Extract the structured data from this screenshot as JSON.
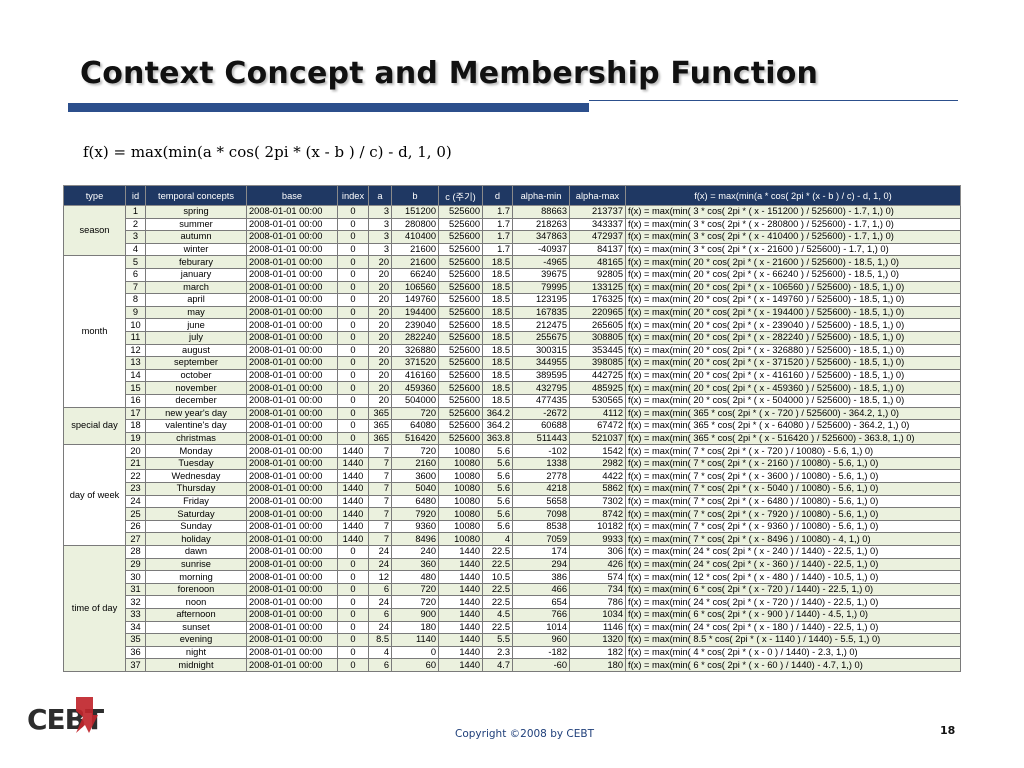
{
  "title": "Context Concept and Membership Function",
  "formula": "f(x) = max(min(a * cos( 2pi * (x - b ) / c) - d, 1, 0)",
  "table": {
    "headers": [
      "type",
      "id",
      "temporal concepts",
      "base",
      "index",
      "a",
      "b",
      "c (주기)",
      "d",
      "alpha-min",
      "alpha-max",
      "f(x)  =  max(min(a * cos( 2pi * (x - b ) / c) - d, 1, 0)"
    ],
    "groups": [
      {
        "label": "season",
        "rows": [
          [
            "1",
            "spring",
            "2008-01-01 00:00",
            "0",
            "3",
            "151200",
            "525600",
            "1.7",
            "88663",
            "213737",
            "f(x) = max(min( 3 * cos( 2pi * ( x - 151200 ) / 525600) - 1.7, 1,) 0)"
          ],
          [
            "2",
            "summer",
            "2008-01-01 00:00",
            "0",
            "3",
            "280800",
            "525600",
            "1.7",
            "218263",
            "343337",
            "f(x) = max(min( 3 * cos( 2pi * ( x - 280800 ) / 525600) - 1.7, 1,) 0)"
          ],
          [
            "3",
            "autumn",
            "2008-01-01 00:00",
            "0",
            "3",
            "410400",
            "525600",
            "1.7",
            "347863",
            "472937",
            "f(x) = max(min( 3 * cos( 2pi * ( x - 410400 ) / 525600) - 1.7, 1,) 0)"
          ],
          [
            "4",
            "winter",
            "2008-01-01 00:00",
            "0",
            "3",
            "21600",
            "525600",
            "1.7",
            "-40937",
            "84137",
            "f(x) = max(min( 3 * cos( 2pi * ( x - 21600 ) / 525600) - 1.7, 1,) 0)"
          ]
        ]
      },
      {
        "label": "month",
        "rows": [
          [
            "5",
            "feburary",
            "2008-01-01 00:00",
            "0",
            "20",
            "21600",
            "525600",
            "18.5",
            "-4965",
            "48165",
            "f(x) = max(min( 20 * cos( 2pi * ( x - 21600 ) / 525600) - 18.5, 1,) 0)"
          ],
          [
            "6",
            "january",
            "2008-01-01 00:00",
            "0",
            "20",
            "66240",
            "525600",
            "18.5",
            "39675",
            "92805",
            "f(x) = max(min( 20 * cos( 2pi * ( x - 66240 ) / 525600) - 18.5, 1,) 0)"
          ],
          [
            "7",
            "march",
            "2008-01-01 00:00",
            "0",
            "20",
            "106560",
            "525600",
            "18.5",
            "79995",
            "133125",
            "f(x) = max(min( 20 * cos( 2pi * ( x - 106560 ) / 525600) - 18.5, 1,) 0)"
          ],
          [
            "8",
            "april",
            "2008-01-01 00:00",
            "0",
            "20",
            "149760",
            "525600",
            "18.5",
            "123195",
            "176325",
            "f(x) = max(min( 20 * cos( 2pi * ( x - 149760 ) / 525600) - 18.5, 1,) 0)"
          ],
          [
            "9",
            "may",
            "2008-01-01 00:00",
            "0",
            "20",
            "194400",
            "525600",
            "18.5",
            "167835",
            "220965",
            "f(x) = max(min( 20 * cos( 2pi * ( x - 194400 ) / 525600) - 18.5, 1,) 0)"
          ],
          [
            "10",
            "june",
            "2008-01-01 00:00",
            "0",
            "20",
            "239040",
            "525600",
            "18.5",
            "212475",
            "265605",
            "f(x) = max(min( 20 * cos( 2pi * ( x - 239040 ) / 525600) - 18.5, 1,) 0)"
          ],
          [
            "11",
            "july",
            "2008-01-01 00:00",
            "0",
            "20",
            "282240",
            "525600",
            "18.5",
            "255675",
            "308805",
            "f(x) = max(min( 20 * cos( 2pi * ( x - 282240 ) / 525600) - 18.5, 1,) 0)"
          ],
          [
            "12",
            "august",
            "2008-01-01 00:00",
            "0",
            "20",
            "326880",
            "525600",
            "18.5",
            "300315",
            "353445",
            "f(x) = max(min( 20 * cos( 2pi * ( x - 326880 ) / 525600) - 18.5, 1,) 0)"
          ],
          [
            "13",
            "september",
            "2008-01-01 00:00",
            "0",
            "20",
            "371520",
            "525600",
            "18.5",
            "344955",
            "398085",
            "f(x) = max(min( 20 * cos( 2pi * ( x - 371520 ) / 525600) - 18.5, 1,) 0)"
          ],
          [
            "14",
            "october",
            "2008-01-01 00:00",
            "0",
            "20",
            "416160",
            "525600",
            "18.5",
            "389595",
            "442725",
            "f(x) = max(min( 20 * cos( 2pi * ( x - 416160 ) / 525600) - 18.5, 1,) 0)"
          ],
          [
            "15",
            "november",
            "2008-01-01 00:00",
            "0",
            "20",
            "459360",
            "525600",
            "18.5",
            "432795",
            "485925",
            "f(x) = max(min( 20 * cos( 2pi * ( x - 459360 ) / 525600) - 18.5, 1,) 0)"
          ],
          [
            "16",
            "december",
            "2008-01-01 00:00",
            "0",
            "20",
            "504000",
            "525600",
            "18.5",
            "477435",
            "530565",
            "f(x) = max(min( 20 * cos( 2pi * ( x - 504000 ) / 525600) - 18.5, 1,) 0)"
          ]
        ]
      },
      {
        "label": "special day",
        "rows": [
          [
            "17",
            "new year's day",
            "2008-01-01 00:00",
            "0",
            "365",
            "720",
            "525600",
            "364.2",
            "-2672",
            "4112",
            "f(x) = max(min( 365 * cos( 2pi * ( x - 720 ) / 525600) - 364.2, 1,) 0)"
          ],
          [
            "18",
            "valentine's day",
            "2008-01-01 00:00",
            "0",
            "365",
            "64080",
            "525600",
            "364.2",
            "60688",
            "67472",
            "f(x) = max(min( 365 * cos( 2pi * ( x - 64080 ) / 525600) - 364.2, 1,) 0)"
          ],
          [
            "19",
            "christmas",
            "2008-01-01 00:00",
            "0",
            "365",
            "516420",
            "525600",
            "363.8",
            "511443",
            "521037",
            "f(x) = max(min( 365 * cos( 2pi * ( x - 516420 ) / 525600) - 363.8, 1,) 0)"
          ]
        ]
      },
      {
        "label": "day of week",
        "rows": [
          [
            "20",
            "Monday",
            "2008-01-01 00:00",
            "1440",
            "7",
            "720",
            "10080",
            "5.6",
            "-102",
            "1542",
            "f(x) = max(min( 7 * cos( 2pi * ( x - 720 ) / 10080) - 5.6, 1,) 0)"
          ],
          [
            "21",
            "Tuesday",
            "2008-01-01 00:00",
            "1440",
            "7",
            "2160",
            "10080",
            "5.6",
            "1338",
            "2982",
            "f(x) = max(min( 7 * cos( 2pi * ( x - 2160 ) / 10080) - 5.6, 1,) 0)"
          ],
          [
            "22",
            "Wednesday",
            "2008-01-01 00:00",
            "1440",
            "7",
            "3600",
            "10080",
            "5.6",
            "2778",
            "4422",
            "f(x) = max(min( 7 * cos( 2pi * ( x - 3600 ) / 10080) - 5.6, 1,) 0)"
          ],
          [
            "23",
            "Thursday",
            "2008-01-01 00:00",
            "1440",
            "7",
            "5040",
            "10080",
            "5.6",
            "4218",
            "5862",
            "f(x) = max(min( 7 * cos( 2pi * ( x - 5040 ) / 10080) - 5.6, 1,) 0)"
          ],
          [
            "24",
            "Friday",
            "2008-01-01 00:00",
            "1440",
            "7",
            "6480",
            "10080",
            "5.6",
            "5658",
            "7302",
            "f(x) = max(min( 7 * cos( 2pi * ( x - 6480 ) / 10080) - 5.6, 1,) 0)"
          ],
          [
            "25",
            "Saturday",
            "2008-01-01 00:00",
            "1440",
            "7",
            "7920",
            "10080",
            "5.6",
            "7098",
            "8742",
            "f(x) = max(min( 7 * cos( 2pi * ( x - 7920 ) / 10080) - 5.6, 1,) 0)"
          ],
          [
            "26",
            "Sunday",
            "2008-01-01 00:00",
            "1440",
            "7",
            "9360",
            "10080",
            "5.6",
            "8538",
            "10182",
            "f(x) = max(min( 7 * cos( 2pi * ( x - 9360 ) / 10080) - 5.6, 1,) 0)"
          ],
          [
            "27",
            "holiday",
            "2008-01-01 00:00",
            "1440",
            "7",
            "8496",
            "10080",
            "4",
            "7059",
            "9933",
            "f(x) = max(min( 7 * cos( 2pi * ( x - 8496 ) / 10080) - 4, 1,) 0)"
          ]
        ]
      },
      {
        "label": "time of day",
        "rows": [
          [
            "28",
            "dawn",
            "2008-01-01 00:00",
            "0",
            "24",
            "240",
            "1440",
            "22.5",
            "174",
            "306",
            "f(x) = max(min( 24 * cos( 2pi * ( x - 240 ) / 1440) - 22.5, 1,) 0)"
          ],
          [
            "29",
            "sunrise",
            "2008-01-01 00:00",
            "0",
            "24",
            "360",
            "1440",
            "22.5",
            "294",
            "426",
            "f(x) = max(min( 24 * cos( 2pi * ( x - 360 ) / 1440) - 22.5, 1,) 0)"
          ],
          [
            "30",
            "morning",
            "2008-01-01 00:00",
            "0",
            "12",
            "480",
            "1440",
            "10.5",
            "386",
            "574",
            "f(x) = max(min( 12 * cos( 2pi * ( x - 480 ) / 1440) - 10.5, 1,) 0)"
          ],
          [
            "31",
            "forenoon",
            "2008-01-01 00:00",
            "0",
            "6",
            "720",
            "1440",
            "22.5",
            "466",
            "734",
            "f(x) = max(min( 6 * cos( 2pi * ( x - 720 ) / 1440) - 22.5, 1,) 0)"
          ],
          [
            "32",
            "noon",
            "2008-01-01 00:00",
            "0",
            "24",
            "720",
            "1440",
            "22.5",
            "654",
            "786",
            "f(x) = max(min( 24 * cos( 2pi * ( x - 720 ) / 1440) - 22.5, 1,) 0)"
          ],
          [
            "33",
            "afternoon",
            "2008-01-01 00:00",
            "0",
            "6",
            "900",
            "1440",
            "4.5",
            "766",
            "1034",
            "f(x) = max(min( 6 * cos( 2pi * ( x - 900 ) / 1440) - 4.5, 1,) 0)"
          ],
          [
            "34",
            "sunset",
            "2008-01-01 00:00",
            "0",
            "24",
            "180",
            "1440",
            "22.5",
            "1014",
            "1146",
            "f(x) = max(min( 24 * cos( 2pi * ( x - 180 ) / 1440) - 22.5, 1,) 0)"
          ],
          [
            "35",
            "evening",
            "2008-01-01 00:00",
            "0",
            "8.5",
            "1140",
            "1440",
            "5.5",
            "960",
            "1320",
            "f(x) = max(min( 8.5 * cos( 2pi * ( x - 1140 ) / 1440) - 5.5, 1,) 0)"
          ],
          [
            "36",
            "night",
            "2008-01-01 00:00",
            "0",
            "4",
            "0",
            "1440",
            "2.3",
            "-182",
            "182",
            "f(x) = max(min( 4 * cos( 2pi * ( x - 0 ) / 1440) - 2.3, 1,) 0)"
          ],
          [
            "37",
            "midnight",
            "2008-01-01 00:00",
            "0",
            "6",
            "60",
            "1440",
            "4.7",
            "-60",
            "180",
            "f(x) = max(min( 6 * cos( 2pi * ( x - 60 ) / 1440) - 4.7, 1,) 0)"
          ]
        ]
      }
    ]
  },
  "logo": {
    "text": "CEBT"
  },
  "footer": "Copyright ©2008 by CEBT",
  "page_number": "18",
  "colors": {
    "header_bg": "#1f3863",
    "accent": "#2c4f8c",
    "row_alt": "#ebf1de",
    "logo_red": "#c0262d"
  }
}
